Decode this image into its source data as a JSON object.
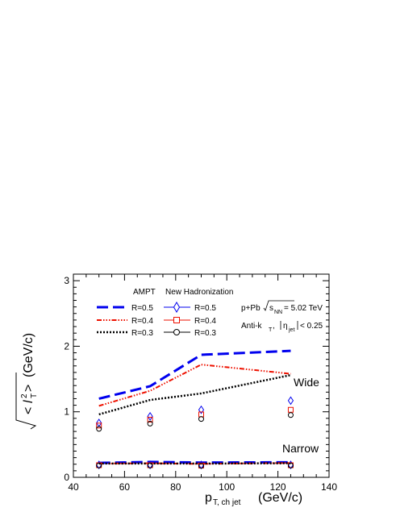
{
  "chart_data": {
    "type": "line",
    "title": "",
    "xlabel": "p",
    "xlabel_sub": "T, ch jet",
    "xlabel_unit": "(GeV/c)",
    "ylabel_unit": "(GeV/c)",
    "xlim": [
      40,
      140
    ],
    "ylim": [
      0,
      3.1
    ],
    "x_ticks": [
      "40",
      "60",
      "80",
      "100",
      "120",
      "140"
    ],
    "y_ticks": [
      "0",
      "1",
      "2",
      "3"
    ],
    "grid": false,
    "legend": {
      "ampt_header": "AMPT",
      "newhad_header": "New Hadronization",
      "ampt_entries": [
        "R=0.5",
        "R=0.4",
        "R=0.3"
      ],
      "newhad_entries": [
        "R=0.5",
        "R=0.4",
        "R=0.3"
      ],
      "placement": "top-left"
    },
    "annotations": {
      "system": "p+Pb",
      "energy_value": "= 5.02 TeV",
      "algo": "Anti-k",
      "eta_cut": "< 0.25",
      "wide": "Wide",
      "narrow": "Narrow"
    },
    "colors": {
      "r05": "#0000ee",
      "r04": "#ee1100",
      "r03": "#000000"
    },
    "series": [
      {
        "name": "R=0.5",
        "group": "AMPT",
        "band": "Wide",
        "x": [
          50,
          70,
          90,
          125
        ],
        "y": [
          1.2,
          1.39,
          1.87,
          1.93
        ]
      },
      {
        "name": "R=0.4",
        "group": "AMPT",
        "band": "Wide",
        "x": [
          50,
          70,
          90,
          125
        ],
        "y": [
          1.09,
          1.32,
          1.72,
          1.58
        ]
      },
      {
        "name": "R=0.3",
        "group": "AMPT",
        "band": "Wide",
        "x": [
          50,
          70,
          90,
          125
        ],
        "y": [
          0.96,
          1.18,
          1.28,
          1.56
        ]
      },
      {
        "name": "R=0.5",
        "group": "AMPT",
        "band": "Narrow",
        "x": [
          50,
          70,
          90,
          125
        ],
        "y": [
          0.22,
          0.235,
          0.225,
          0.23
        ]
      },
      {
        "name": "R=0.4",
        "group": "AMPT",
        "band": "Narrow",
        "x": [
          50,
          70,
          90,
          125
        ],
        "y": [
          0.21,
          0.215,
          0.205,
          0.22
        ]
      },
      {
        "name": "R=0.3",
        "group": "AMPT",
        "band": "Narrow",
        "x": [
          50,
          70,
          90,
          125
        ],
        "y": [
          0.21,
          0.21,
          0.21,
          0.215
        ]
      },
      {
        "name": "R=0.5",
        "group": "New Hadronization",
        "band": "Wide",
        "x": [
          50,
          70,
          90,
          125
        ],
        "y": [
          0.83,
          0.93,
          1.03,
          1.17
        ]
      },
      {
        "name": "R=0.4",
        "group": "New Hadronization",
        "band": "Wide",
        "x": [
          50,
          70,
          90,
          125
        ],
        "y": [
          0.79,
          0.88,
          0.96,
          1.03
        ]
      },
      {
        "name": "R=0.3",
        "group": "New Hadronization",
        "band": "Wide",
        "x": [
          50,
          70,
          90,
          125
        ],
        "y": [
          0.74,
          0.82,
          0.89,
          0.95
        ]
      },
      {
        "name": "R=0.5",
        "group": "New Hadronization",
        "band": "Narrow",
        "x": [
          50,
          70,
          90,
          125
        ],
        "y": [
          0.19,
          0.19,
          0.19,
          0.19
        ]
      },
      {
        "name": "R=0.4",
        "group": "New Hadronization",
        "band": "Narrow",
        "x": [
          50,
          70,
          90,
          125
        ],
        "y": [
          0.185,
          0.185,
          0.18,
          0.185
        ]
      },
      {
        "name": "R=0.3",
        "group": "New Hadronization",
        "band": "Narrow",
        "x": [
          50,
          70,
          90,
          125
        ],
        "y": [
          0.18,
          0.18,
          0.175,
          0.18
        ]
      }
    ]
  }
}
